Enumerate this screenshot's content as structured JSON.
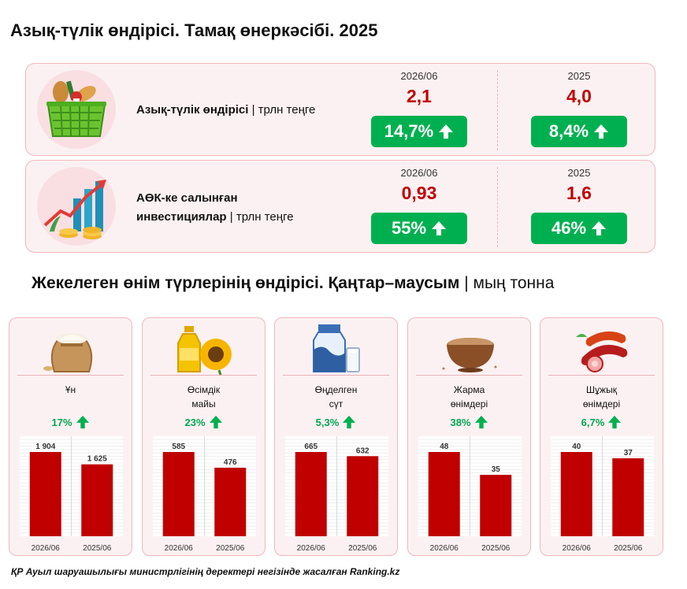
{
  "title": "Азық-түлік өндірісі. Тамақ өнеркәсібі. 2025",
  "kpis": [
    {
      "label_bold": "Азық-түлік өндірісі",
      "label_bold_2": "",
      "label_unit": "| трлн теңге",
      "periods": [
        {
          "period": "2026/06",
          "value": "2,1",
          "growth": "14,7%"
        },
        {
          "period": "2025",
          "value": "4,0",
          "growth": "8,4%"
        }
      ]
    },
    {
      "label_bold": "АӨК-ке салынған",
      "label_bold_2": "инвестициялар",
      "label_unit": "| трлн теңге",
      "periods": [
        {
          "period": "2026/06",
          "value": "0,93",
          "growth": "55%"
        },
        {
          "period": "2025",
          "value": "1,6",
          "growth": "46%"
        }
      ]
    }
  ],
  "subtitle": {
    "main": "Жекелеген өнім түрлерінің өндірісі. Қаңтар–маусым",
    "unit": "| мың тонна"
  },
  "products": [
    {
      "name_1": "Ұн",
      "name_2": "",
      "growth": "17%",
      "icon": "flour-sack-icon"
    },
    {
      "name_1": "Өсімдік",
      "name_2": "майы",
      "growth": "23%",
      "icon": "sunflower-oil-icon"
    },
    {
      "name_1": "Өңделген",
      "name_2": "сүт",
      "growth": "5,3%",
      "icon": "milk-icon"
    },
    {
      "name_1": "Жарма",
      "name_2": "өнімдері",
      "growth": "38%",
      "icon": "grain-bowl-icon"
    },
    {
      "name_1": "Шұжық",
      "name_2": "өнімдері",
      "growth": "6,7%",
      "icon": "sausage-icon"
    }
  ],
  "chart_data": [
    {
      "type": "bar",
      "title": "Ұн",
      "categories": [
        "2026/06",
        "2025/06"
      ],
      "values": [
        1904,
        1625
      ],
      "value_labels": [
        "1 904",
        "1 625"
      ]
    },
    {
      "type": "bar",
      "title": "Өсімдік майы",
      "categories": [
        "2026/06",
        "2025/06"
      ],
      "values": [
        585,
        476
      ],
      "value_labels": [
        "585",
        "476"
      ]
    },
    {
      "type": "bar",
      "title": "Өңделген сүт",
      "categories": [
        "2026/06",
        "2025/06"
      ],
      "values": [
        665,
        632
      ],
      "value_labels": [
        "665",
        "632"
      ]
    },
    {
      "type": "bar",
      "title": "Жарма өнімдері",
      "categories": [
        "2026/06",
        "2025/06"
      ],
      "values": [
        48,
        35
      ],
      "value_labels": [
        "48",
        "35"
      ]
    },
    {
      "type": "bar",
      "title": "Шұжық өнімдері",
      "categories": [
        "2026/06",
        "2025/06"
      ],
      "values": [
        40,
        37
      ],
      "value_labels": [
        "40",
        "37"
      ]
    }
  ],
  "colors": {
    "bar": "#c00000",
    "growth": "#00b050",
    "value": "#c00000",
    "card_border": "#f2b7bd",
    "card_bg": "#fcf1f2"
  },
  "footer": "ҚР Ауыл шаруашылығы министрлігінің деректері негізінде жасалған Ranking.kz"
}
